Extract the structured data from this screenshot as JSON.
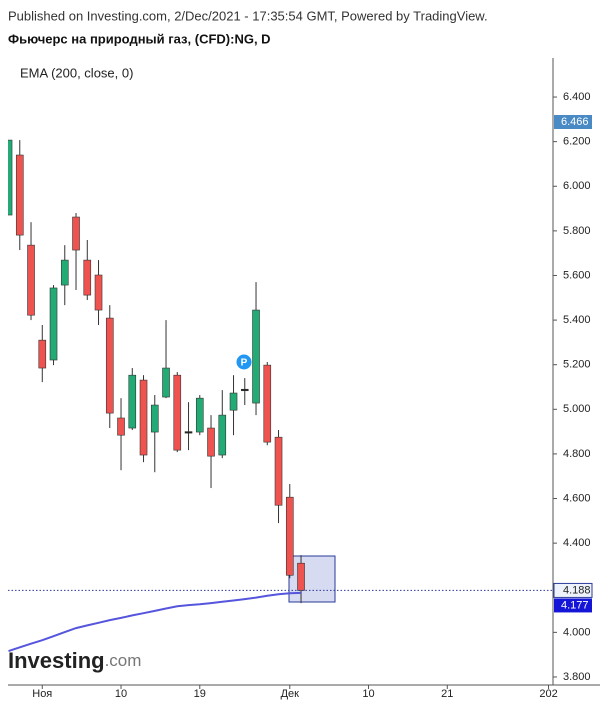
{
  "header": {
    "published": "Published on Investing.com, 2/Dec/2021 - 17:35:54 GMT, Powered by TradingView.",
    "title": "Фьючерс на природный газ, (CFD):NG, D"
  },
  "logo": {
    "text": "Investing",
    "suffix": ".com"
  },
  "chart_data": {
    "type": "candlestick",
    "categories": [
      null,
      null,
      null,
      "Ноя",
      null,
      null,
      null,
      null,
      null,
      null,
      "10",
      null,
      null,
      null,
      null,
      null,
      null,
      "19",
      null,
      null,
      null,
      null,
      null,
      null,
      null,
      "Дек",
      null,
      null,
      null,
      null,
      null,
      null,
      "10",
      null,
      null,
      null,
      null,
      null,
      null,
      "21",
      null,
      null,
      null,
      null,
      null,
      null,
      null,
      null,
      "202"
    ],
    "open": [
      5.871,
      6.14,
      5.736,
      5.31,
      5.221,
      5.557,
      5.862,
      5.669,
      5.602,
      5.409,
      4.961,
      4.916,
      5.131,
      4.898,
      5.055,
      5.153,
      4.9,
      4.898,
      4.916,
      4.795,
      4.996,
      5.09,
      5.028,
      5.198,
      4.875,
      4.606,
      4.31,
      null,
      null,
      null,
      null,
      null,
      null,
      null,
      null,
      null,
      null,
      null,
      null,
      null,
      null,
      null,
      null,
      null,
      null,
      null,
      null,
      null,
      null
    ],
    "high": [
      6.207,
      6.207,
      5.839,
      5.378,
      5.557,
      5.736,
      5.88,
      5.759,
      5.669,
      5.467,
      5.05,
      5.185,
      5.153,
      5.064,
      5.4,
      5.167,
      5.032,
      5.064,
      4.974,
      5.086,
      5.153,
      5.14,
      5.57,
      5.212,
      4.907,
      4.665,
      4.346,
      null,
      null,
      null,
      null,
      null,
      null,
      null,
      null,
      null,
      null,
      null,
      null,
      null,
      null,
      null,
      null,
      null,
      null,
      null,
      null,
      null,
      null
    ],
    "low": [
      5.871,
      5.714,
      5.4,
      5.122,
      5.198,
      5.467,
      5.535,
      5.49,
      5.378,
      4.916,
      4.727,
      4.907,
      4.763,
      4.718,
      5.05,
      4.808,
      4.817,
      4.884,
      4.647,
      4.781,
      4.884,
      5.019,
      4.974,
      4.839,
      4.49,
      4.243,
      4.131,
      null,
      null,
      null,
      null,
      null,
      null,
      null,
      null,
      null,
      null,
      null,
      null,
      null,
      null,
      null,
      null,
      null,
      null,
      null,
      null,
      null,
      null
    ],
    "close": [
      6.207,
      5.781,
      5.422,
      5.185,
      5.544,
      5.669,
      5.714,
      5.512,
      5.445,
      4.983,
      4.884,
      5.153,
      4.795,
      5.019,
      5.185,
      4.817,
      4.9,
      5.05,
      4.79,
      4.974,
      5.073,
      5.09,
      5.445,
      4.853,
      4.57,
      4.256,
      4.188,
      null,
      null,
      null,
      null,
      null,
      null,
      null,
      null,
      null,
      null,
      null,
      null,
      null,
      null,
      null,
      null,
      null,
      null,
      null,
      null,
      null,
      null
    ],
    "up_color": "#22ab74",
    "down_color": "#ef5350",
    "doji_color": "#222222",
    "ema": {
      "name": "EMA (200, close, 0)",
      "color": "#5555dd",
      "values": [
        3.916,
        3.933,
        3.949,
        3.965,
        3.983,
        4.001,
        4.019,
        4.031,
        4.043,
        4.055,
        4.065,
        4.076,
        4.086,
        4.096,
        4.107,
        4.117,
        4.122,
        4.126,
        4.131,
        4.137,
        4.143,
        4.149,
        4.156,
        4.164,
        4.171,
        4.175,
        4.177,
        null,
        null,
        null,
        null,
        null,
        null,
        null,
        null,
        null,
        null,
        null,
        null,
        null,
        null,
        null,
        null,
        null,
        null,
        null,
        null,
        null,
        null
      ]
    },
    "marker_price": "6.466",
    "marker_letter": "P",
    "ylim": [
      3.764,
      6.575
    ],
    "yticks": [
      {
        "value": 3.8,
        "label": "3.800"
      },
      {
        "value": 4.0,
        "label": "4.000"
      },
      {
        "value": 4.2,
        "label": "4.200"
      },
      {
        "value": 4.4,
        "label": "4.400"
      },
      {
        "value": 4.6,
        "label": "4.600"
      },
      {
        "value": 4.8,
        "label": "4.800"
      },
      {
        "value": 5.0,
        "label": "5.000"
      },
      {
        "value": 5.2,
        "label": "5.200"
      },
      {
        "value": 5.4,
        "label": "5.400"
      },
      {
        "value": 5.6,
        "label": "5.600"
      },
      {
        "value": 5.8,
        "label": "5.800"
      },
      {
        "value": 6.0,
        "label": "6.000"
      },
      {
        "value": 6.2,
        "label": "6.200"
      },
      {
        "value": 6.4,
        "label": "6.400"
      }
    ]
  }
}
